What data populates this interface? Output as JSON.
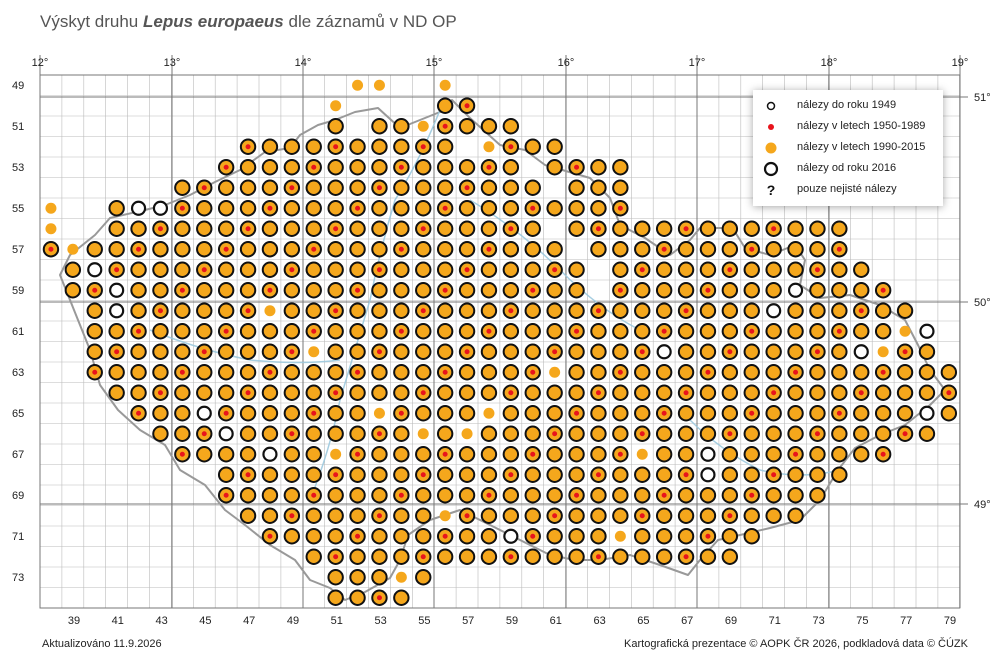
{
  "title": {
    "prefix": "Výskyt druhu ",
    "species": "Lepus europaeus",
    "suffix": " dle záznamů v ND OP"
  },
  "legend": [
    {
      "symbol": "dot-black",
      "label": "nálezy do roku 1949"
    },
    {
      "symbol": "dot-red",
      "label": "nálezy v letech 1950-1989"
    },
    {
      "symbol": "dot-orange",
      "label": "nálezy v letech 1990-2015"
    },
    {
      "symbol": "ring-black",
      "label": "nálezy od roku 2016"
    },
    {
      "symbol": "question",
      "label": "pouze nejisté nálezy"
    }
  ],
  "legend_question_glyph": "?",
  "axes": {
    "longitude_labels": [
      "12°",
      "13°",
      "14°",
      "15°",
      "16°",
      "17°",
      "18°",
      "19°"
    ],
    "latitude_labels": [
      "51°",
      "50°",
      "49°"
    ],
    "column_labels": [
      "39",
      "41",
      "43",
      "45",
      "47",
      "49",
      "51",
      "53",
      "55",
      "57",
      "59",
      "61",
      "63",
      "65",
      "67",
      "69",
      "71",
      "73",
      "75",
      "77",
      "79"
    ],
    "row_labels": [
      "49",
      "51",
      "53",
      "55",
      "57",
      "59",
      "61",
      "63",
      "65",
      "67",
      "69",
      "71",
      "73"
    ]
  },
  "colors": {
    "orange": "#f5a71c",
    "red": "#e8141c",
    "ring": "#111111",
    "grid": "#bbbbbb",
    "grid_major": "#777777",
    "border": "#999999",
    "river": "#9cc9de"
  },
  "footer": {
    "updated": "Aktualizováno 11.9.2026",
    "credits": "Kartografická prezentace © AOPK ČR 2026, podkladová data © ČÚZK"
  }
}
